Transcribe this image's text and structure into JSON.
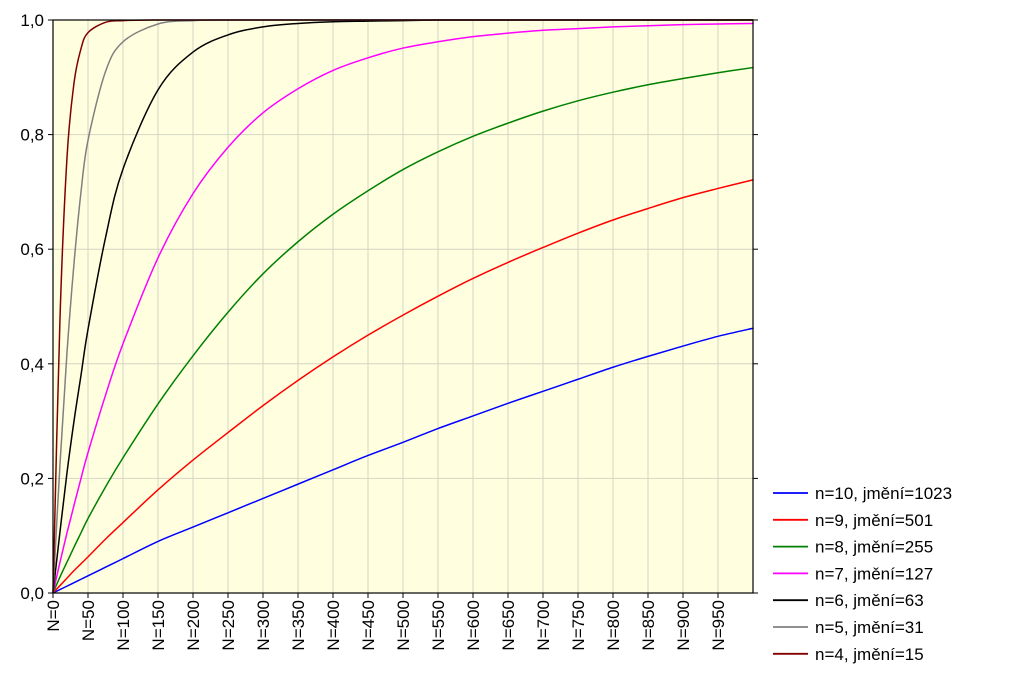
{
  "chart_data": {
    "type": "line",
    "title": "",
    "xlabel": "",
    "ylabel": "",
    "xlim": [
      0,
      1000
    ],
    "ylim": [
      0,
      1
    ],
    "grid": true,
    "legend_position": "bottom-right",
    "plot_background": "#FFFFE0",
    "x_tick_values": [
      0,
      50,
      100,
      150,
      200,
      250,
      300,
      350,
      400,
      450,
      500,
      550,
      600,
      650,
      700,
      750,
      800,
      850,
      900,
      950
    ],
    "x_tick_labels": [
      "N=0",
      "N=50",
      "N=100",
      "N=150",
      "N=200",
      "N=250",
      "N=300",
      "N=350",
      "N=400",
      "N=450",
      "N=500",
      "N=550",
      "N=600",
      "N=650",
      "N=700",
      "N=750",
      "N=800",
      "N=850",
      "N=900",
      "N=950"
    ],
    "y_tick_values": [
      0,
      0.2,
      0.4,
      0.6,
      0.8,
      1.0
    ],
    "y_tick_labels": [
      "0,0",
      "0,2",
      "0,4",
      "0,6",
      "0,8",
      "1,0"
    ],
    "x": [
      0,
      10,
      20,
      30,
      40,
      50,
      75,
      100,
      150,
      200,
      250,
      300,
      350,
      400,
      450,
      500,
      550,
      600,
      650,
      700,
      750,
      800,
      850,
      900,
      950,
      1000
    ],
    "series": [
      {
        "name": "n=10, jmění=1023",
        "color": "#0000FF",
        "values": [
          0,
          0.006,
          0.012,
          0.018,
          0.024,
          0.03,
          0.045,
          0.06,
          0.09,
          0.115,
          0.14,
          0.165,
          0.19,
          0.215,
          0.24,
          0.263,
          0.287,
          0.309,
          0.331,
          0.352,
          0.373,
          0.394,
          0.413,
          0.431,
          0.448,
          0.462
        ]
      },
      {
        "name": "n=9, jmění=501",
        "color": "#FF0000",
        "values": [
          0,
          0.013,
          0.026,
          0.039,
          0.051,
          0.063,
          0.094,
          0.123,
          0.18,
          0.232,
          0.28,
          0.327,
          0.371,
          0.412,
          0.45,
          0.485,
          0.518,
          0.549,
          0.577,
          0.603,
          0.628,
          0.651,
          0.671,
          0.69,
          0.706,
          0.721
        ]
      },
      {
        "name": "n=8, jmění=255",
        "color": "#008000",
        "values": [
          0,
          0.028,
          0.054,
          0.08,
          0.105,
          0.13,
          0.185,
          0.236,
          0.33,
          0.414,
          0.49,
          0.557,
          0.613,
          0.661,
          0.702,
          0.739,
          0.77,
          0.797,
          0.82,
          0.841,
          0.859,
          0.874,
          0.887,
          0.898,
          0.908,
          0.917
        ]
      },
      {
        "name": "n=7, jmění=127",
        "color": "#FF00FF",
        "values": [
          0,
          0.054,
          0.105,
          0.153,
          0.2,
          0.245,
          0.345,
          0.435,
          0.585,
          0.697,
          0.778,
          0.838,
          0.88,
          0.912,
          0.934,
          0.951,
          0.962,
          0.971,
          0.977,
          0.982,
          0.985,
          0.988,
          0.99,
          0.992,
          0.993,
          0.994
        ]
      },
      {
        "name": "n=6, jmění=63",
        "color": "#000000",
        "values": [
          0,
          0.107,
          0.21,
          0.3,
          0.38,
          0.46,
          0.62,
          0.74,
          0.878,
          0.944,
          0.974,
          0.988,
          0.994,
          0.997,
          0.998,
          0.999,
          1.0,
          1.0,
          1.0,
          1.0,
          1.0,
          1.0,
          1.0,
          1.0,
          1.0,
          1.0
        ]
      },
      {
        "name": "n=5, jmění=31",
        "color": "#808080",
        "values": [
          0,
          0.225,
          0.42,
          0.575,
          0.7,
          0.79,
          0.91,
          0.962,
          0.993,
          0.999,
          1.0,
          1.0,
          1.0,
          1.0,
          1.0,
          1.0,
          1.0,
          1.0,
          1.0,
          1.0,
          1.0,
          1.0,
          1.0,
          1.0,
          1.0,
          1.0
        ]
      },
      {
        "name": "n=4, jmění=15",
        "color": "#800000",
        "values": [
          0,
          0.48,
          0.76,
          0.89,
          0.95,
          0.978,
          0.996,
          0.999,
          1.0,
          1.0,
          1.0,
          1.0,
          1.0,
          1.0,
          1.0,
          1.0,
          1.0,
          1.0,
          1.0,
          1.0,
          1.0,
          1.0,
          1.0,
          1.0,
          1.0,
          1.0
        ]
      }
    ]
  }
}
